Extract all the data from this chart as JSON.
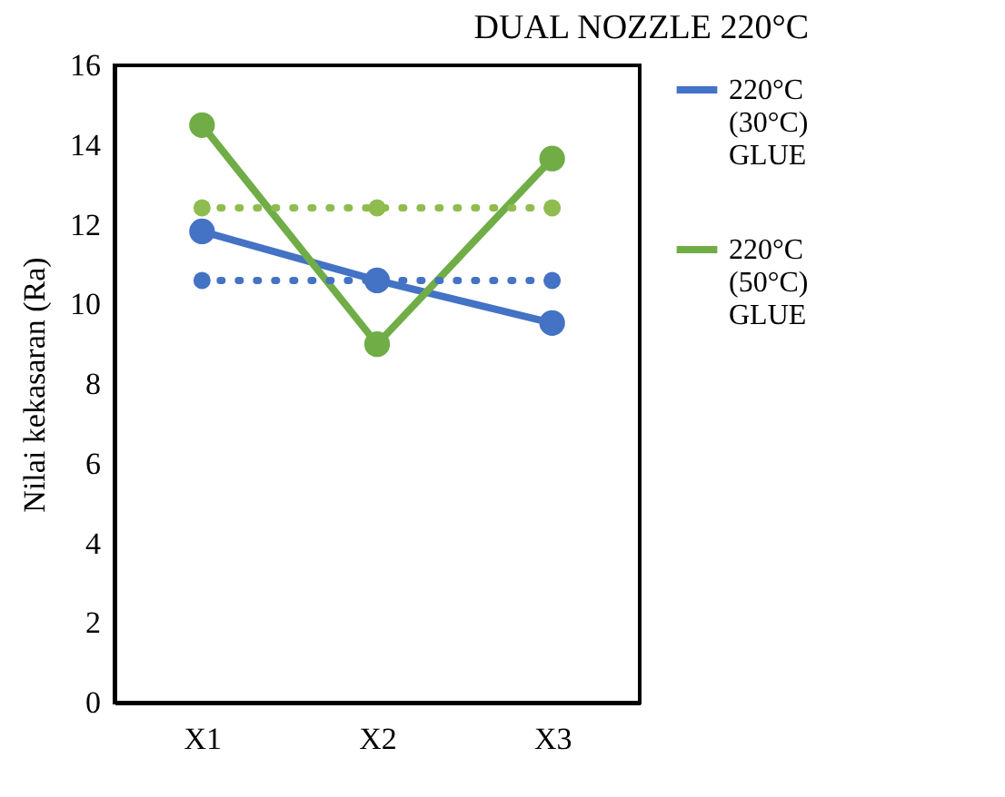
{
  "chart_data": {
    "type": "line",
    "title": "DUAL NOZZLE 220°C",
    "ylabel": "Nilai kekasaran (Ra)",
    "categories": [
      "X1",
      "X2",
      "X3"
    ],
    "series": [
      {
        "name": "220°C (30°C) GLUE",
        "color": "#4472c4",
        "values": [
          11.83,
          10.6,
          9.53
        ]
      },
      {
        "name": "220°C (50°C) GLUE",
        "color": "#70ad47",
        "values": [
          14.5,
          9.0,
          13.66
        ]
      },
      {
        "color": "#4472c4",
        "values": [
          10.6,
          10.6,
          10.6
        ],
        "line_style": "dotted"
      },
      {
        "color": "#8fbc4f",
        "values": [
          12.42,
          12.42,
          12.42
        ],
        "line_style": "dotted"
      }
    ],
    "ylim": [
      0,
      16
    ],
    "yticks": [
      0,
      2,
      4,
      6,
      8,
      10,
      12,
      14,
      16
    ],
    "grid": false,
    "legend": "right",
    "marker": "circle",
    "line_style": "solid"
  }
}
